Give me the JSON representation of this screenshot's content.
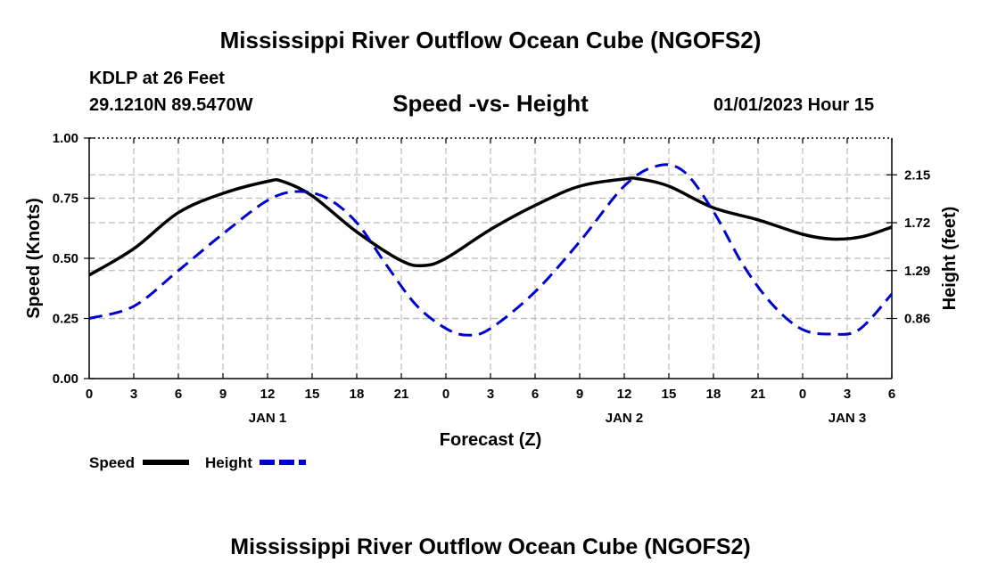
{
  "header": {
    "title": "Mississippi River Outflow Ocean Cube (NGOFS2)",
    "station": "KDLP at 26 Feet",
    "coords": "29.1210N  89.5470W",
    "datetime": "01/01/2023 Hour 15",
    "footer_title": "Mississippi River Outflow Ocean Cube (NGOFS2)"
  },
  "colors": {
    "speed": "#000000",
    "height": "#0000cc",
    "grid": "#bbbbbb"
  },
  "chart_data": {
    "type": "line",
    "title": "Speed -vs- Height",
    "xlabel": "Forecast (Z)",
    "ylabel_left": "Speed (Knots)",
    "ylabel_right": "Height (feet)",
    "x_range": [
      0,
      54
    ],
    "x_ticks": [
      0,
      3,
      6,
      9,
      12,
      15,
      18,
      21,
      24,
      27,
      30,
      33,
      36,
      39,
      42,
      45,
      48,
      51,
      54
    ],
    "x_tick_labels": [
      "0",
      "3",
      "6",
      "9",
      "12",
      "15",
      "18",
      "21",
      "0",
      "3",
      "6",
      "9",
      "12",
      "15",
      "18",
      "21",
      "0",
      "3",
      "6"
    ],
    "day_labels": [
      {
        "x": 12,
        "label": "JAN 1"
      },
      {
        "x": 36,
        "label": "JAN 2"
      },
      {
        "x": 51,
        "label": "JAN 3"
      }
    ],
    "y_left_range": [
      0,
      1
    ],
    "y_left_ticks": [
      0,
      0.25,
      0.5,
      0.75,
      1.0
    ],
    "y_left_tick_labels": [
      "0.00",
      "0.25",
      "0.50",
      "0.75",
      "1.00"
    ],
    "y_right_range": [
      0.32,
      2.48
    ],
    "y_right_ticks": [
      0.86,
      1.29,
      1.72,
      2.15
    ],
    "y_right_tick_labels": [
      "0.86",
      "1.29",
      "1.72",
      "2.15"
    ],
    "grid": true,
    "series": [
      {
        "name": "Speed",
        "axis": "left",
        "style": "solid",
        "x": [
          0,
          3,
          6,
          9,
          12,
          13,
          15,
          18,
          21,
          22.5,
          24,
          27,
          30,
          33,
          36,
          37,
          39,
          42,
          45,
          48,
          50,
          52,
          54
        ],
        "y": [
          0.43,
          0.54,
          0.69,
          0.77,
          0.82,
          0.82,
          0.76,
          0.61,
          0.49,
          0.47,
          0.5,
          0.62,
          0.72,
          0.8,
          0.83,
          0.83,
          0.8,
          0.71,
          0.66,
          0.6,
          0.58,
          0.59,
          0.63
        ]
      },
      {
        "name": "Height",
        "axis": "right",
        "style": "dashed",
        "x": [
          0,
          3,
          6,
          9,
          12,
          14,
          16,
          18,
          20,
          22,
          24,
          25.5,
          27,
          30,
          33,
          36,
          38.2,
          40,
          42,
          44,
          46,
          48,
          50,
          51.8,
          54
        ],
        "y": [
          0.86,
          0.97,
          1.29,
          1.62,
          1.92,
          2.0,
          1.94,
          1.72,
          1.34,
          0.98,
          0.77,
          0.71,
          0.77,
          1.1,
          1.55,
          2.05,
          2.23,
          2.18,
          1.82,
          1.34,
          0.98,
          0.76,
          0.72,
          0.76,
          1.08
        ]
      }
    ],
    "legend": [
      {
        "label": "Speed"
      },
      {
        "label": "Height"
      }
    ]
  }
}
